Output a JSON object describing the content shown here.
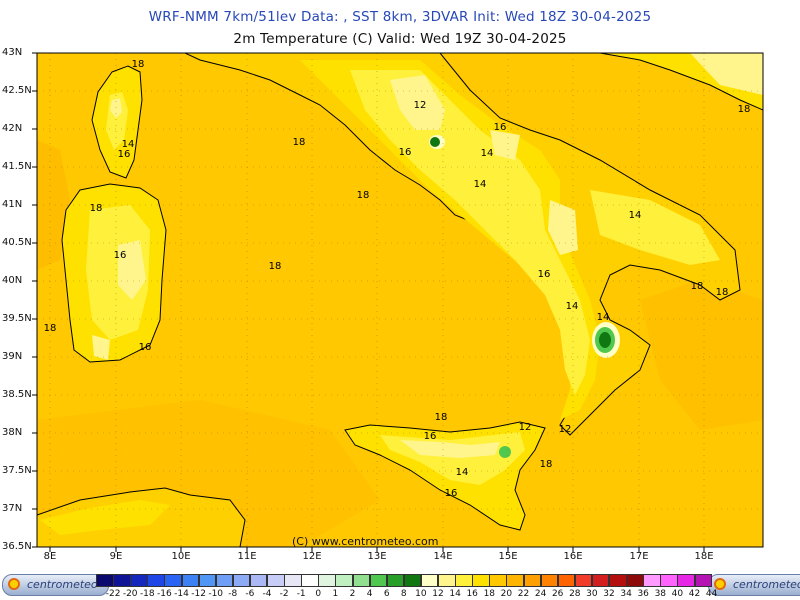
{
  "header": {
    "line1": "WRF-NMM 7km/51lev   Data: , SST 8km, 3DVAR   Init: Wed 18Z 30-04-2025",
    "line2": "2m Temperature (C)  Valid: Wed 19Z 30-04-2025"
  },
  "lat_labels": [
    "43N",
    "42.5N",
    "42N",
    "41.5N",
    "41N",
    "40.5N",
    "40N",
    "39.5N",
    "39N",
    "38.5N",
    "38N",
    "37.5N",
    "37N",
    "36.5N"
  ],
  "lon_labels": [
    "8E",
    "9E",
    "10E",
    "11E",
    "12E",
    "13E",
    "14E",
    "15E",
    "16E",
    "17E",
    "18E"
  ],
  "copyright": "(C) www.centrometeo.com",
  "contour_labels": [
    "18",
    "12",
    "16",
    "16",
    "14",
    "14",
    "18",
    "18",
    "14",
    "18",
    "16",
    "16",
    "14",
    "18",
    "18",
    "18",
    "14",
    "16",
    "14",
    "16",
    "18",
    "12",
    "16",
    "12",
    "14",
    "16",
    "18",
    "18",
    "18"
  ],
  "legend": {
    "left_logo": "centrometeo",
    "right_logo": "centrometeo",
    "labels": [
      "-22",
      "-20",
      "-18",
      "-16",
      "-14",
      "-12",
      "-10",
      "-8",
      "-6",
      "-4",
      "-2",
      "-1",
      "0",
      "1",
      "2",
      "4",
      "6",
      "8",
      "10",
      "12",
      "14",
      "16",
      "18",
      "20",
      "22",
      "24",
      "26",
      "28",
      "30",
      "32",
      "34",
      "36",
      "38",
      "40",
      "42",
      "44"
    ],
    "colors": [
      "#0a0a6e",
      "#0f1496",
      "#1428be",
      "#1e46e6",
      "#2a64f5",
      "#3c82f5",
      "#5096f5",
      "#6e9ef5",
      "#8caaf5",
      "#aab8f5",
      "#c8cdf8",
      "#e6e6f5",
      "#ffffff",
      "#e0f5e0",
      "#c0f0c0",
      "#90e090",
      "#50c850",
      "#28a028",
      "#107810",
      "#ffffc8",
      "#fff58c",
      "#fff03c",
      "#ffe100",
      "#ffc800",
      "#ffb400",
      "#ffa000",
      "#ff8200",
      "#ff6400",
      "#f03c28",
      "#d21e1e",
      "#b40f0f",
      "#8c0a0a",
      "#ff9bff",
      "#ff64ff",
      "#e628e6",
      "#b414b4"
    ]
  },
  "colors": {
    "sea_18": "#ffc800",
    "field_16": "#ffe100",
    "field_14": "#fff03c",
    "field_12": "#fff58c",
    "field_10": "#ffffc8",
    "field_8": "#107810",
    "field_20": "#ffb400",
    "title_blue": "#2848b8"
  }
}
